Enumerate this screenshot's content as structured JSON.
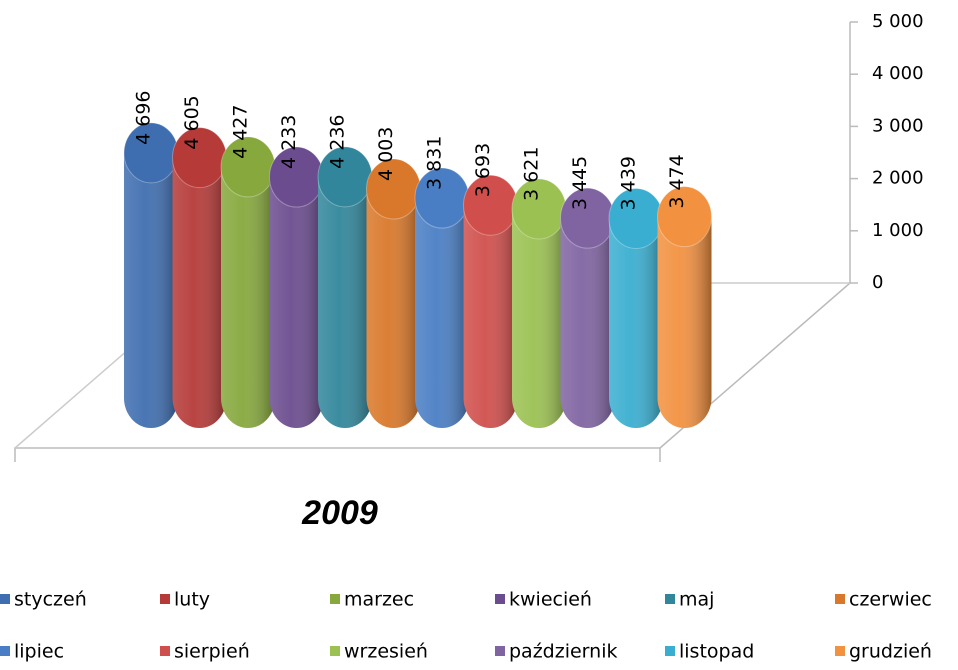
{
  "chart_data": {
    "type": "cylinder3d",
    "categories": [
      "2009"
    ],
    "series": [
      {
        "name": "styczeń",
        "color": "#3f6eb0",
        "values": [
          4696
        ],
        "value_labels": [
          "4 696"
        ]
      },
      {
        "name": "luty",
        "color": "#b53a38",
        "values": [
          4605
        ],
        "value_labels": [
          "4 605"
        ]
      },
      {
        "name": "marzec",
        "color": "#86a83d",
        "values": [
          4427
        ],
        "value_labels": [
          "4 427"
        ]
      },
      {
        "name": "kwiecień",
        "color": "#6b4c8f",
        "values": [
          4233
        ],
        "value_labels": [
          "4 233"
        ]
      },
      {
        "name": "maj",
        "color": "#31869b",
        "values": [
          4236
        ],
        "value_labels": [
          "4 236"
        ]
      },
      {
        "name": "czerwiec",
        "color": "#d9782a",
        "values": [
          4003
        ],
        "value_labels": [
          "4 003"
        ]
      },
      {
        "name": "lipiec",
        "color": "#4a7ec4",
        "values": [
          3831
        ],
        "value_labels": [
          "3 831"
        ]
      },
      {
        "name": "sierpień",
        "color": "#d04f4c",
        "values": [
          3693
        ],
        "value_labels": [
          "3 693"
        ]
      },
      {
        "name": "wrzesień",
        "color": "#9bc152",
        "values": [
          3621
        ],
        "value_labels": [
          "3 621"
        ]
      },
      {
        "name": "październik",
        "color": "#8064a2",
        "values": [
          3445
        ],
        "value_labels": [
          "3 445"
        ]
      },
      {
        "name": "listopad",
        "color": "#3aaed0",
        "values": [
          3439
        ],
        "value_labels": [
          "3 439"
        ]
      },
      {
        "name": "grudzień",
        "color": "#f29140",
        "values": [
          3474
        ],
        "value_labels": [
          "3 474"
        ]
      }
    ],
    "ylim": [
      0,
      5000
    ],
    "yticks": [
      0,
      {
        "value": 1000,
        "label": "1 000"
      },
      {
        "value": 2000,
        "label": "2 000"
      },
      {
        "value": 3000,
        "label": "3 000"
      },
      {
        "value": 4000,
        "label": "4 000"
      },
      {
        "value": 5000,
        "label": "5 000"
      }
    ],
    "legend": "bottom"
  }
}
